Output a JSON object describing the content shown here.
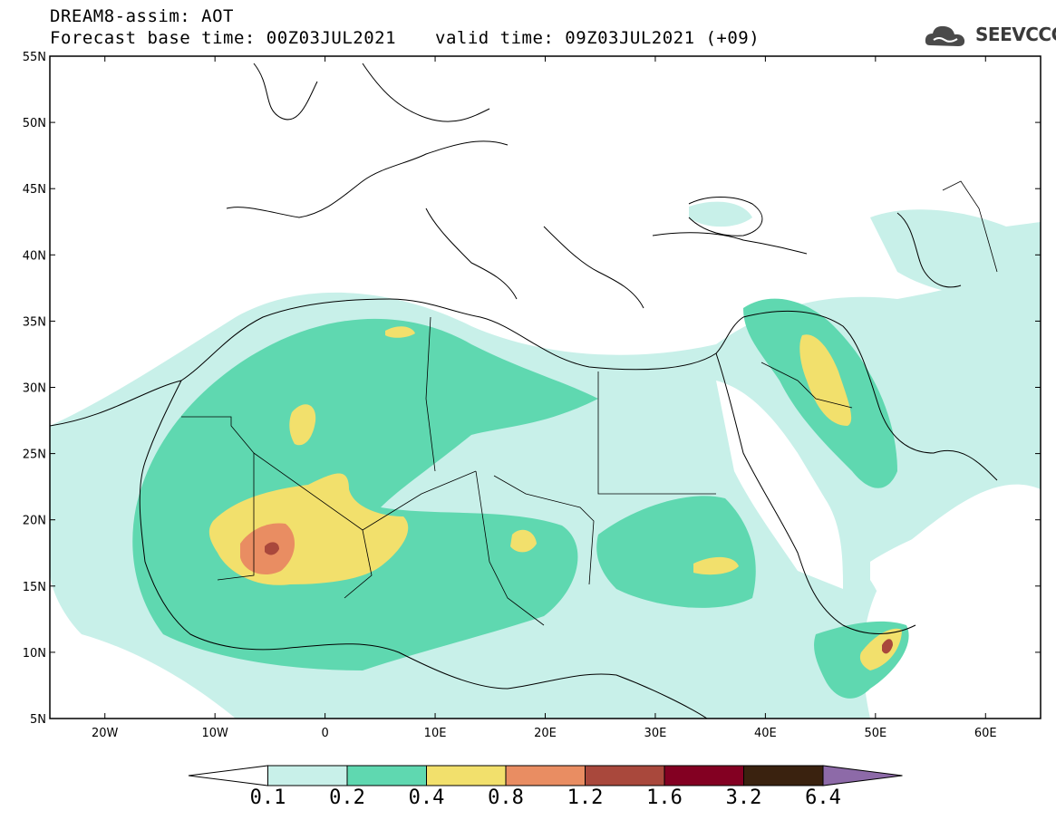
{
  "title": {
    "line1": "DREAM8-assim: AOT",
    "line2_left": "Forecast base time: 00Z03JUL2021",
    "line2_right": "valid time: 09Z03JUL2021 (+09)"
  },
  "logo": {
    "text": "SEEVCCC",
    "icon": "cloud-logo-icon"
  },
  "map": {
    "lat_labels": [
      "55N",
      "50N",
      "45N",
      "40N",
      "35N",
      "30N",
      "25N",
      "20N",
      "15N",
      "10N",
      "5N"
    ],
    "lon_labels": [
      "20W",
      "10W",
      "0",
      "10E",
      "20E",
      "30E",
      "40E",
      "50E",
      "60E"
    ],
    "extent": {
      "lon_min": -25,
      "lon_max": 65,
      "lat_min": 5,
      "lat_max": 55
    }
  },
  "colorbar": {
    "colors": [
      "#ffffff",
      "#c8f0e9",
      "#5fd8b0",
      "#f2e06c",
      "#e98d62",
      "#a9483c",
      "#830022",
      "#3a220f",
      "#8d6aa8"
    ],
    "labels": [
      "0.1",
      "0.2",
      "0.4",
      "0.8",
      "1.2",
      "1.6",
      "3.2",
      "6.4"
    ]
  }
}
